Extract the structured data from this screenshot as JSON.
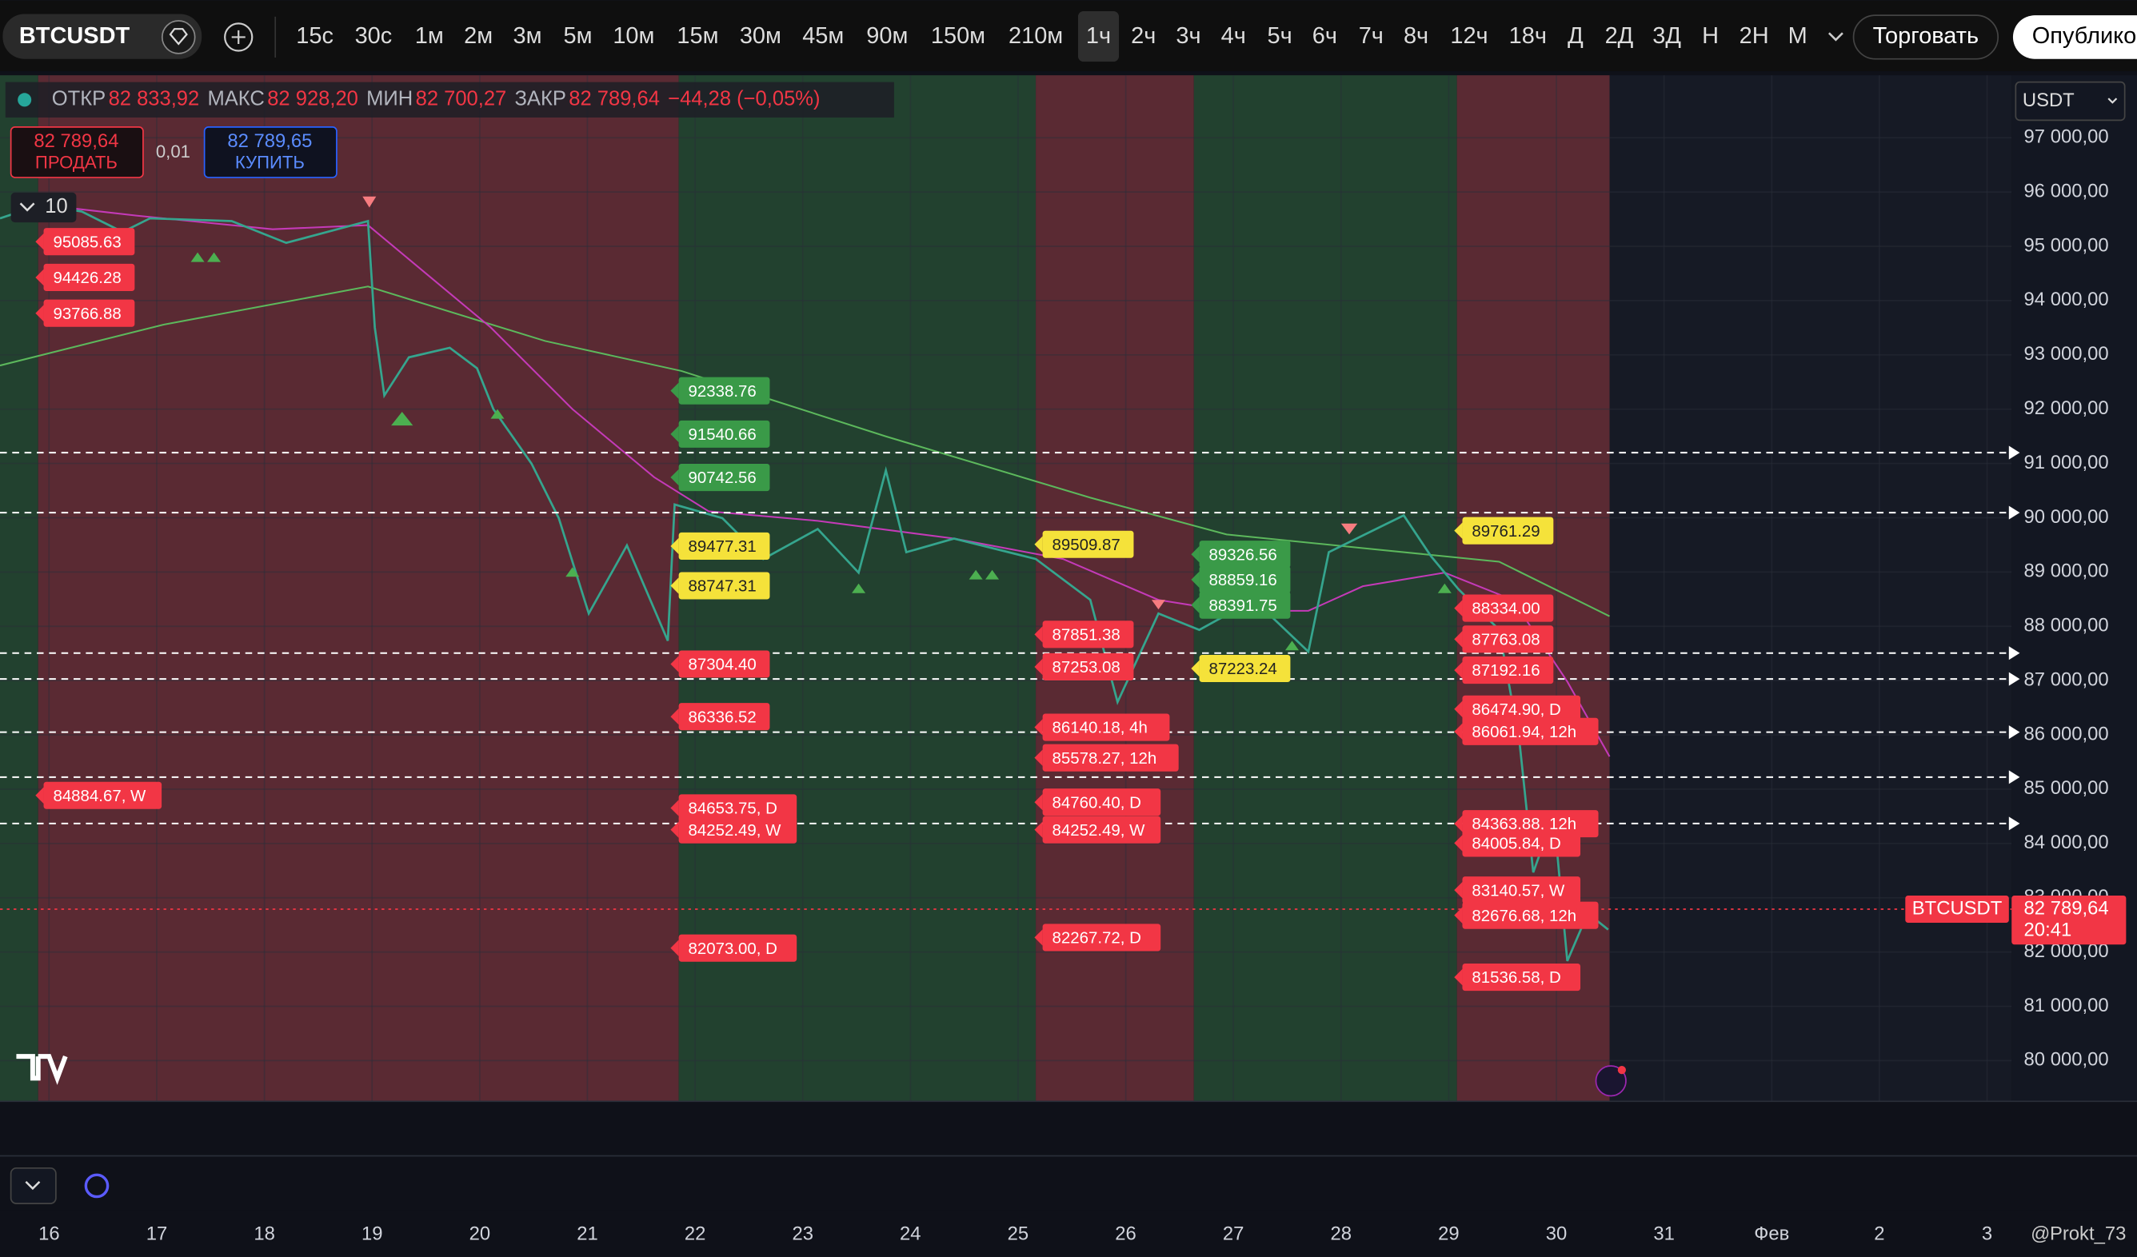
{
  "toolbar": {
    "symbol": "BTCUSDT",
    "intervals": [
      "15с",
      "30с",
      "1м",
      "2м",
      "3м",
      "5м",
      "10м",
      "15м",
      "30м",
      "45м",
      "90м",
      "150м",
      "210м",
      "1ч",
      "2ч",
      "3ч",
      "4ч",
      "5ч",
      "6ч",
      "7ч",
      "8ч",
      "12ч",
      "18ч",
      "Д",
      "2Д",
      "3Д",
      "Н",
      "2Н",
      "М"
    ],
    "active_interval": "1ч",
    "trade_button": "Торговать",
    "publish_button": "Опублико"
  },
  "ohlc": [
    {
      "label": "ОТКР",
      "value": "82 833,92"
    },
    {
      "label": "МАКС",
      "value": "82 928,20"
    },
    {
      "label": "МИН",
      "value": "82 700,27"
    },
    {
      "label": "ЗАКР",
      "value": "82 789,64"
    }
  ],
  "change": "−44,28 (−0,05%)",
  "order": {
    "sell_price": "82 789,64",
    "sell": "ПРОДАТЬ",
    "quantity": "0,01",
    "buy_price": "82 789,65",
    "buy": "КУПИТЬ"
  },
  "indicators_count": "10",
  "currency": "USDT",
  "price_axis": {
    "ylim": [
      79250,
      98150
    ],
    "ticks": [
      {
        "value": 97000,
        "label": "97 000,00"
      },
      {
        "value": 96000,
        "label": "96 000,00"
      },
      {
        "value": 95000,
        "label": "95 000,00"
      },
      {
        "value": 94000,
        "label": "94 000,00"
      },
      {
        "value": 93000,
        "label": "93 000,00"
      },
      {
        "value": 92000,
        "label": "92 000,00"
      },
      {
        "value": 91000,
        "label": "91 000,00"
      },
      {
        "value": 90000,
        "label": "90 000,00"
      },
      {
        "value": 89000,
        "label": "89 000,00"
      },
      {
        "value": 88000,
        "label": "88 000,00"
      },
      {
        "value": 87000,
        "label": "87 000,00"
      },
      {
        "value": 86000,
        "label": "86 000,00"
      },
      {
        "value": 85000,
        "label": "85 000,00"
      },
      {
        "value": 84000,
        "label": "84 000,00"
      },
      {
        "value": 83000,
        "label": "83 000,00"
      },
      {
        "value": 82000,
        "label": "82 000,00"
      },
      {
        "value": 81000,
        "label": "81 000,00"
      },
      {
        "value": 80000,
        "label": "80 000,00"
      }
    ]
  },
  "dashed_levels": [
    91199,
    90094,
    87507,
    87030,
    86050,
    85222,
    84368
  ],
  "current_price": {
    "value": 82789.64,
    "symbol": "BTCUSDT",
    "label": "82 789,64",
    "countdown": "20:41"
  },
  "level_groups": [
    {
      "labels": [
        {
          "value": 95085.63,
          "label": "95085.63",
          "color": "#f23645"
        },
        {
          "value": 94426.28,
          "label": "94426.28",
          "color": "#f23645"
        },
        {
          "value": 93766.88,
          "label": "93766.88",
          "color": "#f23645"
        },
        {
          "value": 84884.67,
          "label": "84884.67, W",
          "color": "#f23645"
        }
      ]
    },
    {
      "labels": [
        {
          "value": 92338.76,
          "label": "92338.76",
          "color": "#3a9a48"
        },
        {
          "value": 91540.66,
          "label": "91540.66",
          "color": "#3a9a48"
        },
        {
          "value": 90742.56,
          "label": "90742.56",
          "color": "#3a9a48"
        },
        {
          "value": 89477.31,
          "label": "89477.31",
          "color": "#f5e23a"
        },
        {
          "value": 88747.31,
          "label": "88747.31",
          "color": "#f5e23a"
        },
        {
          "value": 87304.4,
          "label": "87304.40",
          "color": "#f23645"
        },
        {
          "value": 86336.52,
          "label": "86336.52",
          "color": "#f23645"
        },
        {
          "value": 84653.75,
          "label": "84653.75, D",
          "color": "#f23645"
        },
        {
          "value": 84252.49,
          "label": "84252.49, W",
          "color": "#f23645"
        },
        {
          "value": 82073.0,
          "label": "82073.00, D",
          "color": "#f23645"
        }
      ]
    },
    {
      "labels": [
        {
          "value": 89509.87,
          "label": "89509.87",
          "color": "#f5e23a"
        },
        {
          "value": 87851.38,
          "label": "87851.38",
          "color": "#f23645"
        },
        {
          "value": 87253.08,
          "label": "87253.08",
          "color": "#f23645"
        },
        {
          "value": 86140.18,
          "label": "86140.18, 4h",
          "color": "#f23645"
        },
        {
          "value": 85578.27,
          "label": "85578.27, 12h",
          "color": "#f23645"
        },
        {
          "value": 84760.4,
          "label": "84760.40, D",
          "color": "#f23645"
        },
        {
          "value": 84252.49,
          "label": "84252.49, W",
          "color": "#f23645"
        },
        {
          "value": 82267.72,
          "label": "82267.72, D",
          "color": "#f23645"
        }
      ]
    },
    {
      "labels": [
        {
          "value": 89326.56,
          "label": "89326.56",
          "color": "#3a9a48"
        },
        {
          "value": 88859.16,
          "label": "88859.16",
          "color": "#3a9a48"
        },
        {
          "value": 88391.75,
          "label": "88391.75",
          "color": "#3a9a48"
        },
        {
          "value": 87223.24,
          "label": "87223.24",
          "color": "#f5e23a"
        }
      ]
    },
    {
      "labels": [
        {
          "value": 89761.29,
          "label": "89761.29",
          "color": "#f5e23a"
        },
        {
          "value": 88334.0,
          "label": "88334.00",
          "color": "#f23645"
        },
        {
          "value": 87763.08,
          "label": "87763.08",
          "color": "#f23645"
        },
        {
          "value": 87192.16,
          "label": "87192.16",
          "color": "#f23645"
        },
        {
          "value": 86474.9,
          "label": "86474.90, D",
          "color": "#f23645"
        },
        {
          "value": 86061.94,
          "label": "86061.94, 12h",
          "color": "#f23645"
        },
        {
          "value": 84363.88,
          "label": "84363.88, 12h",
          "color": "#f23645"
        },
        {
          "value": 84005.84,
          "label": "84005.84, D",
          "color": "#f23645"
        },
        {
          "value": 83140.57,
          "label": "83140.57, W",
          "color": "#f23645"
        },
        {
          "value": 82676.68,
          "label": "82676.68, 12h",
          "color": "#f23645"
        },
        {
          "value": 81536.58,
          "label": "81536.58, D",
          "color": "#f23645"
        }
      ]
    }
  ],
  "dates": [
    "16",
    "17",
    "18",
    "19",
    "20",
    "21",
    "22",
    "23",
    "24",
    "25",
    "26",
    "27",
    "28",
    "29",
    "30",
    "31",
    "Фев",
    "2",
    "3"
  ],
  "watermark": "Prokt_73"
}
